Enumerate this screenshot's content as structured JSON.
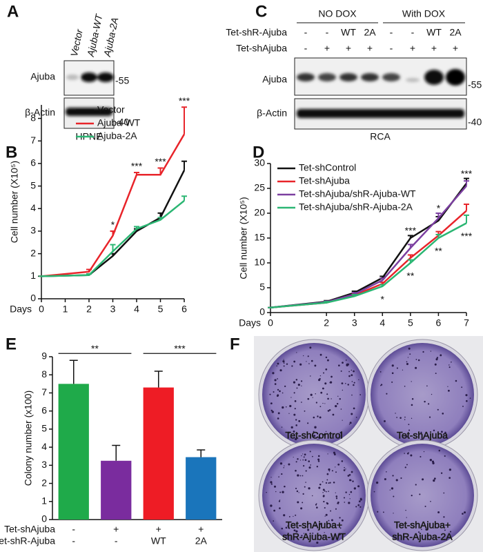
{
  "panel_a": {
    "letter": "A",
    "lanes": [
      "Vector",
      "Ajuba-WT",
      "Ajuba-2A"
    ],
    "rows": [
      "Ajuba",
      "β-Actin"
    ],
    "markers": [
      "-55",
      "-40"
    ],
    "cell_line": "HPNE"
  },
  "panel_c": {
    "letter": "C",
    "groups": [
      "NO DOX",
      "With DOX"
    ],
    "conditions": [
      {
        "name": "Tet-shR-Ajuba",
        "values": [
          "-",
          "-",
          "WT",
          "2A",
          "-",
          "-",
          "WT",
          "2A"
        ]
      },
      {
        "name": "Tet-shAjuba",
        "values": [
          "-",
          "+",
          "+",
          "+",
          "-",
          "+",
          "+",
          "+"
        ]
      }
    ],
    "rows": [
      "Ajuba",
      "β-Actin"
    ],
    "markers": [
      "-55",
      "-40"
    ],
    "cell_line": "RCA"
  },
  "chart_data": [
    {
      "panel_label": "B",
      "type": "line",
      "xlabel": "Days",
      "ylabel": "Cell number (X10⁵)",
      "x": [
        0,
        2,
        3,
        4,
        5,
        6
      ],
      "xlim": [
        0,
        6
      ],
      "xticks": [
        0,
        1,
        2,
        3,
        4,
        5,
        6
      ],
      "ylim": [
        0,
        8.6
      ],
      "yticks": [
        0,
        1,
        2,
        3,
        4,
        5,
        6,
        7,
        8
      ],
      "legend": "upper left",
      "series": [
        {
          "name": "Vector",
          "color": "#111111",
          "values": [
            1,
            1.05,
            1.9,
            3.0,
            3.6,
            5.7
          ],
          "errors": [
            0,
            0.05,
            0.1,
            0.1,
            0.2,
            0.4
          ]
        },
        {
          "name": "Ajuba-WT",
          "color": "#e8242a",
          "values": [
            1,
            1.2,
            2.8,
            5.5,
            5.5,
            7.3
          ],
          "errors": [
            0,
            0.1,
            0.2,
            0.1,
            0.3,
            1.2
          ]
        },
        {
          "name": "Ajuba-2A",
          "color": "#2bb673",
          "values": [
            1,
            1.05,
            2.1,
            3.1,
            3.5,
            4.35
          ],
          "errors": [
            0,
            0.05,
            0.3,
            0.1,
            0.1,
            0.2
          ]
        }
      ],
      "annotations": [
        {
          "text": "*",
          "x": 3
        },
        {
          "text": "***",
          "x": 4
        },
        {
          "text": "***",
          "x": 5
        },
        {
          "text": "***",
          "x": 6
        }
      ]
    },
    {
      "panel_label": "D",
      "type": "line",
      "xlabel": "Days",
      "ylabel": "Cell number (X10⁵)",
      "x": [
        0,
        2,
        3,
        4,
        5,
        6,
        7
      ],
      "xlim": [
        0,
        7
      ],
      "xticks": [
        0,
        2,
        3,
        4,
        5,
        6,
        7
      ],
      "ylim": [
        0,
        30
      ],
      "yticks": [
        0,
        5,
        10,
        15,
        20,
        25,
        30
      ],
      "legend": "upper left",
      "series": [
        {
          "name": "Tet-shControl",
          "color": "#111111",
          "values": [
            1,
            2.2,
            4,
            7,
            15,
            18.5,
            26
          ],
          "errors": [
            0,
            0.2,
            0.3,
            0.3,
            0.5,
            0.8,
            1
          ]
        },
        {
          "name": "Tet-shAjuba",
          "color": "#e8242a",
          "values": [
            1,
            2,
            3.5,
            5.8,
            11,
            15.5,
            20.5
          ],
          "errors": [
            0,
            0.2,
            0.3,
            0.3,
            0.6,
            0.8,
            1.3
          ]
        },
        {
          "name": "Tet-shAjuba/shR-Ajuba-WT",
          "color": "#7b3fa0",
          "values": [
            1,
            2.1,
            3.7,
            6.5,
            13,
            19,
            25.5
          ],
          "errors": [
            0,
            0.2,
            0.3,
            0.4,
            0.7,
            1,
            1
          ]
        },
        {
          "name": "Tet-shAjuba/shR-Ajuba-2A",
          "color": "#2bb673",
          "values": [
            1,
            2,
            3.3,
            5.3,
            10,
            15,
            18
          ],
          "errors": [
            0,
            0.2,
            0.3,
            0.3,
            0.6,
            0.7,
            1.6
          ]
        }
      ],
      "annotations": [
        {
          "text": "*",
          "x": 4,
          "series": 3
        },
        {
          "text": "***",
          "x": 5,
          "series": 1
        },
        {
          "text": "**",
          "x": 5,
          "series": 3
        },
        {
          "text": "*",
          "x": 6,
          "series": 1
        },
        {
          "text": "**",
          "x": 6,
          "series": 3
        },
        {
          "text": "***",
          "x": 7,
          "series": 1
        },
        {
          "text": "***",
          "x": 7,
          "series": 3
        }
      ]
    },
    {
      "panel_label": "E",
      "type": "bar",
      "ylabel": "Colony number (x100)",
      "ylim": [
        0,
        9
      ],
      "yticks": [
        0,
        1,
        2,
        3,
        4,
        5,
        6,
        7,
        8,
        9
      ],
      "values": [
        7.5,
        3.25,
        7.3,
        3.45
      ],
      "errors": [
        1.3,
        0.85,
        0.9,
        0.4
      ],
      "colors": [
        "#1faa4a",
        "#7a2c9e",
        "#ee1c25",
        "#1a75bb"
      ],
      "conditions": [
        {
          "name": "Tet-shAjuba",
          "values": [
            "-",
            "+",
            "+",
            "+"
          ]
        },
        {
          "name": "Tet-shR-Ajuba",
          "values": [
            "-",
            "-",
            "WT",
            "2A"
          ]
        }
      ],
      "significance": [
        {
          "text": "**",
          "from": 0,
          "to": 1
        },
        {
          "text": "***",
          "from": 2,
          "to": 3
        }
      ]
    }
  ],
  "panel_f": {
    "letter": "F",
    "labels": [
      [
        "Tet-shControl"
      ],
      [
        "Tet-shAjuba"
      ],
      [
        "Tet-shAjuba+",
        "shR-Ajuba-WT"
      ],
      [
        "Tet-shAjuba+",
        "shR-Ajuba-2A"
      ]
    ]
  }
}
